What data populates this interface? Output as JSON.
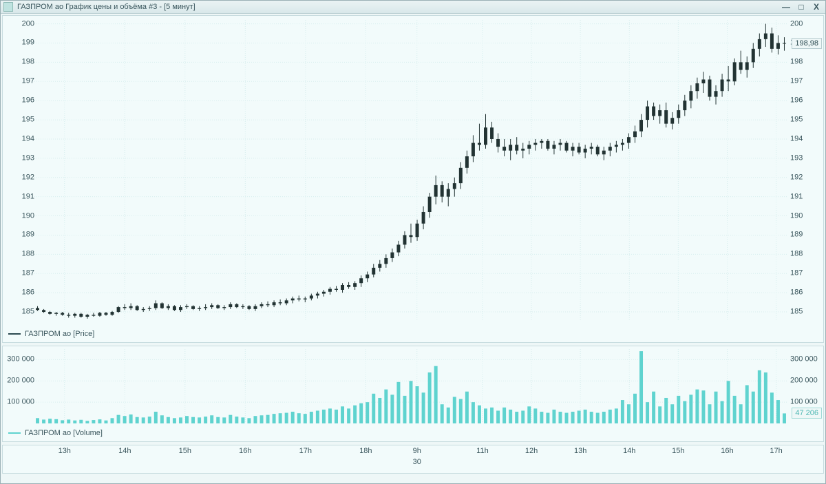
{
  "window": {
    "title": "ГАЗПРОМ ао График цены и объёма #3 - [5 минут]",
    "minimize": "—",
    "maximize": "□",
    "close": "X"
  },
  "price_chart": {
    "type": "candlestick",
    "legend": "ГАЗПРОМ ао [Price]",
    "ylim": [
      184.5,
      200.2
    ],
    "ytick_step": 1,
    "yticks_left": [
      185,
      186,
      187,
      188,
      189,
      190,
      191,
      192,
      193,
      194,
      195,
      196,
      197,
      198,
      199,
      200
    ],
    "yticks_right": [
      185,
      186,
      187,
      188,
      189,
      190,
      191,
      192,
      193,
      194,
      195,
      196,
      197,
      198,
      199,
      200
    ],
    "last_price_label": "198,98",
    "last_price_value": 198.98,
    "grid_color": "#d7eeee",
    "background_color": "#f2fbfb",
    "candle_color": "#223333",
    "label_fontsize": 11,
    "data_ohlc": [
      [
        185.2,
        185.3,
        185.05,
        185.1
      ],
      [
        185.1,
        185.15,
        184.95,
        185.0
      ],
      [
        185.0,
        185.05,
        184.85,
        184.9
      ],
      [
        184.9,
        185.0,
        184.8,
        184.95
      ],
      [
        184.95,
        185.0,
        184.8,
        184.85
      ],
      [
        184.85,
        184.95,
        184.7,
        184.8
      ],
      [
        184.8,
        184.95,
        184.7,
        184.9
      ],
      [
        184.9,
        184.95,
        184.7,
        184.75
      ],
      [
        184.75,
        184.9,
        184.65,
        184.85
      ],
      [
        184.85,
        184.95,
        184.75,
        184.8
      ],
      [
        184.8,
        185.0,
        184.75,
        184.95
      ],
      [
        184.95,
        185.0,
        184.8,
        184.85
      ],
      [
        184.85,
        185.05,
        184.8,
        185.0
      ],
      [
        185.0,
        185.3,
        184.95,
        185.25
      ],
      [
        185.25,
        185.4,
        185.1,
        185.2
      ],
      [
        185.2,
        185.45,
        185.1,
        185.3
      ],
      [
        185.3,
        185.35,
        185.05,
        185.1
      ],
      [
        185.1,
        185.25,
        185.0,
        185.15
      ],
      [
        185.15,
        185.3,
        185.05,
        185.2
      ],
      [
        185.2,
        185.6,
        185.1,
        185.45
      ],
      [
        185.45,
        185.5,
        185.15,
        185.2
      ],
      [
        185.2,
        185.4,
        185.1,
        185.3
      ],
      [
        185.3,
        185.35,
        185.05,
        185.1
      ],
      [
        185.1,
        185.35,
        185.0,
        185.25
      ],
      [
        185.25,
        185.4,
        185.15,
        185.3
      ],
      [
        185.3,
        185.35,
        185.1,
        185.15
      ],
      [
        185.15,
        185.3,
        185.05,
        185.2
      ],
      [
        185.2,
        185.4,
        185.1,
        185.25
      ],
      [
        185.25,
        185.45,
        185.15,
        185.35
      ],
      [
        185.35,
        185.4,
        185.15,
        185.2
      ],
      [
        185.2,
        185.35,
        185.1,
        185.25
      ],
      [
        185.25,
        185.5,
        185.15,
        185.4
      ],
      [
        185.4,
        185.45,
        185.2,
        185.25
      ],
      [
        185.25,
        185.4,
        185.15,
        185.3
      ],
      [
        185.3,
        185.35,
        185.1,
        185.15
      ],
      [
        185.15,
        185.4,
        185.05,
        185.3
      ],
      [
        185.3,
        185.5,
        185.2,
        185.4
      ],
      [
        185.4,
        185.55,
        185.25,
        185.35
      ],
      [
        185.35,
        185.6,
        185.25,
        185.5
      ],
      [
        185.5,
        185.65,
        185.35,
        185.45
      ],
      [
        185.45,
        185.7,
        185.35,
        185.6
      ],
      [
        185.6,
        185.8,
        185.45,
        185.7
      ],
      [
        185.7,
        185.85,
        185.55,
        185.65
      ],
      [
        185.65,
        185.8,
        185.5,
        185.7
      ],
      [
        185.7,
        185.95,
        185.6,
        185.85
      ],
      [
        185.85,
        186.05,
        185.7,
        185.95
      ],
      [
        185.95,
        186.15,
        185.8,
        186.05
      ],
      [
        186.05,
        186.3,
        185.9,
        186.2
      ],
      [
        186.2,
        186.35,
        186.05,
        186.15
      ],
      [
        186.15,
        186.5,
        186.0,
        186.4
      ],
      [
        186.4,
        186.55,
        186.2,
        186.3
      ],
      [
        186.3,
        186.6,
        186.15,
        186.5
      ],
      [
        186.5,
        186.9,
        186.3,
        186.75
      ],
      [
        186.75,
        187.1,
        186.55,
        186.95
      ],
      [
        186.95,
        187.5,
        186.8,
        187.3
      ],
      [
        187.3,
        187.7,
        187.1,
        187.5
      ],
      [
        187.5,
        188.0,
        187.3,
        187.8
      ],
      [
        187.8,
        188.3,
        187.6,
        188.1
      ],
      [
        188.1,
        188.7,
        187.9,
        188.5
      ],
      [
        188.5,
        189.2,
        188.3,
        189.0
      ],
      [
        189.0,
        189.6,
        188.6,
        188.9
      ],
      [
        188.9,
        189.8,
        188.7,
        189.6
      ],
      [
        189.6,
        190.5,
        189.3,
        190.2
      ],
      [
        190.2,
        191.2,
        189.9,
        191.0
      ],
      [
        191.0,
        192.1,
        190.6,
        191.6
      ],
      [
        191.6,
        191.8,
        190.7,
        191.0
      ],
      [
        191.0,
        191.7,
        190.5,
        191.4
      ],
      [
        191.4,
        192.0,
        191.0,
        191.7
      ],
      [
        191.7,
        192.8,
        191.4,
        192.5
      ],
      [
        192.5,
        193.4,
        192.2,
        193.1
      ],
      [
        193.1,
        194.2,
        192.8,
        193.8
      ],
      [
        193.8,
        194.8,
        193.4,
        193.7
      ],
      [
        193.7,
        195.3,
        193.5,
        194.6
      ],
      [
        194.6,
        194.9,
        193.8,
        194.0
      ],
      [
        194.0,
        194.3,
        193.3,
        193.6
      ],
      [
        193.6,
        194.0,
        193.1,
        193.4
      ],
      [
        193.4,
        194.0,
        192.9,
        193.7
      ],
      [
        193.7,
        194.1,
        193.2,
        193.4
      ],
      [
        193.4,
        193.8,
        193.0,
        193.5
      ],
      [
        193.5,
        193.9,
        193.2,
        193.7
      ],
      [
        193.7,
        194.0,
        193.4,
        193.8
      ],
      [
        193.8,
        194.0,
        193.5,
        193.9
      ],
      [
        193.9,
        194.0,
        193.4,
        193.5
      ],
      [
        193.5,
        193.9,
        193.2,
        193.7
      ],
      [
        193.7,
        194.0,
        193.4,
        193.8
      ],
      [
        193.8,
        193.9,
        193.3,
        193.4
      ],
      [
        193.4,
        193.8,
        193.1,
        193.6
      ],
      [
        193.6,
        193.8,
        193.2,
        193.3
      ],
      [
        193.3,
        193.7,
        193.0,
        193.5
      ],
      [
        193.5,
        193.8,
        193.2,
        193.6
      ],
      [
        193.6,
        193.7,
        193.1,
        193.2
      ],
      [
        193.2,
        193.6,
        192.9,
        193.4
      ],
      [
        193.4,
        193.8,
        193.1,
        193.6
      ],
      [
        193.6,
        193.9,
        193.3,
        193.7
      ],
      [
        193.7,
        194.0,
        193.4,
        193.8
      ],
      [
        193.8,
        194.3,
        193.5,
        194.1
      ],
      [
        194.1,
        194.7,
        193.8,
        194.4
      ],
      [
        194.4,
        195.3,
        194.1,
        195.0
      ],
      [
        195.0,
        196.0,
        194.6,
        195.7
      ],
      [
        195.7,
        195.9,
        195.0,
        195.2
      ],
      [
        195.2,
        195.8,
        194.8,
        195.5
      ],
      [
        195.5,
        195.9,
        194.6,
        194.8
      ],
      [
        194.8,
        195.4,
        194.5,
        195.1
      ],
      [
        195.1,
        195.8,
        194.8,
        195.5
      ],
      [
        195.5,
        196.3,
        195.2,
        196.0
      ],
      [
        196.0,
        196.8,
        195.6,
        196.5
      ],
      [
        196.5,
        197.2,
        196.1,
        196.9
      ],
      [
        196.9,
        197.5,
        196.4,
        197.1
      ],
      [
        197.1,
        197.3,
        196.0,
        196.2
      ],
      [
        196.2,
        196.8,
        195.8,
        196.5
      ],
      [
        196.5,
        197.4,
        196.2,
        197.1
      ],
      [
        197.1,
        197.8,
        196.5,
        197.0
      ],
      [
        197.0,
        198.2,
        196.8,
        198.0
      ],
      [
        198.0,
        198.6,
        197.4,
        197.6
      ],
      [
        197.6,
        198.3,
        197.2,
        198.0
      ],
      [
        198.0,
        199.0,
        197.7,
        198.7
      ],
      [
        198.7,
        199.5,
        198.3,
        199.2
      ],
      [
        199.2,
        200.0,
        198.8,
        199.5
      ],
      [
        199.5,
        199.8,
        198.5,
        198.7
      ],
      [
        198.7,
        199.4,
        198.4,
        199.0
      ],
      [
        199.0,
        199.3,
        198.6,
        198.98
      ]
    ]
  },
  "volume_chart": {
    "type": "bar",
    "legend": "ГАЗПРОМ ао [Volume]",
    "ylim": [
      0,
      350000
    ],
    "yticks": [
      100000,
      200000,
      300000
    ],
    "ytick_labels": [
      "100 000",
      "200 000",
      "300 000"
    ],
    "last_volume_label": "47 206",
    "last_volume_value": 47206,
    "bar_color": "#5fd3cf",
    "background_color": "#f2fbfb",
    "data": [
      25000,
      18000,
      22000,
      20000,
      15000,
      18000,
      14000,
      17000,
      12000,
      16000,
      19000,
      14000,
      25000,
      40000,
      35000,
      42000,
      30000,
      28000,
      32000,
      55000,
      38000,
      30000,
      25000,
      28000,
      35000,
      30000,
      28000,
      32000,
      38000,
      30000,
      28000,
      40000,
      32000,
      28000,
      25000,
      35000,
      38000,
      40000,
      45000,
      48000,
      50000,
      55000,
      48000,
      45000,
      55000,
      60000,
      65000,
      70000,
      65000,
      80000,
      70000,
      85000,
      95000,
      100000,
      140000,
      120000,
      160000,
      135000,
      195000,
      130000,
      200000,
      175000,
      145000,
      240000,
      270000,
      90000,
      75000,
      125000,
      115000,
      150000,
      100000,
      85000,
      70000,
      75000,
      60000,
      75000,
      65000,
      55000,
      60000,
      80000,
      70000,
      55000,
      50000,
      65000,
      55000,
      50000,
      55000,
      60000,
      65000,
      55000,
      50000,
      55000,
      65000,
      70000,
      110000,
      90000,
      140000,
      340000,
      100000,
      150000,
      80000,
      120000,
      90000,
      130000,
      105000,
      135000,
      160000,
      155000,
      90000,
      150000,
      105000,
      200000,
      130000,
      90000,
      180000,
      150000,
      250000,
      240000,
      145000,
      110000,
      47206
    ]
  },
  "xaxis": {
    "ticks": [
      {
        "pos": 0.04,
        "label": "13h"
      },
      {
        "pos": 0.12,
        "label": "14h"
      },
      {
        "pos": 0.2,
        "label": "15h"
      },
      {
        "pos": 0.28,
        "label": "16h"
      },
      {
        "pos": 0.36,
        "label": "17h"
      },
      {
        "pos": 0.44,
        "label": "18h"
      },
      {
        "pos": 0.508,
        "label": "9h"
      },
      {
        "pos": 0.595,
        "label": "11h"
      },
      {
        "pos": 0.66,
        "label": "12h"
      },
      {
        "pos": 0.725,
        "label": "13h"
      },
      {
        "pos": 0.79,
        "label": "14h"
      },
      {
        "pos": 0.855,
        "label": "15h"
      },
      {
        "pos": 0.92,
        "label": "16h"
      },
      {
        "pos": 0.985,
        "label": "17h"
      }
    ],
    "sublabel": {
      "pos": 0.508,
      "label": "30"
    }
  },
  "colors": {
    "window_bg": "#eef7f7",
    "border": "#9ab0b5",
    "text": "#3a565d"
  }
}
